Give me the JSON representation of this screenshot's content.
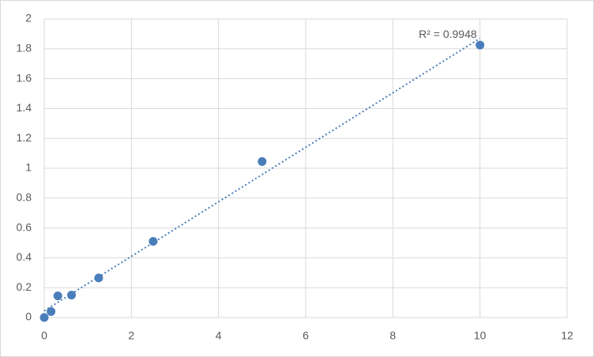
{
  "chart_data": {
    "type": "scatter",
    "x": [
      0,
      0.156,
      0.3125,
      0.625,
      1.25,
      2.5,
      5,
      10
    ],
    "series": [
      {
        "color": "#4a7ebb",
        "values": [
          0,
          0.04,
          0.145,
          0.15,
          0.265,
          0.51,
          1.045,
          1.825
        ]
      }
    ],
    "xlim": [
      0,
      12
    ],
    "xticks": [
      0,
      2,
      4,
      6,
      8,
      10,
      12
    ],
    "ylim": [
      0,
      2
    ],
    "yticks": [
      0,
      0.2,
      0.4,
      0.6,
      0.8,
      1,
      1.2,
      1.4,
      1.6,
      1.8,
      2
    ],
    "grid": true,
    "trendline": "linear",
    "annotation": "R² = 0.9948"
  }
}
